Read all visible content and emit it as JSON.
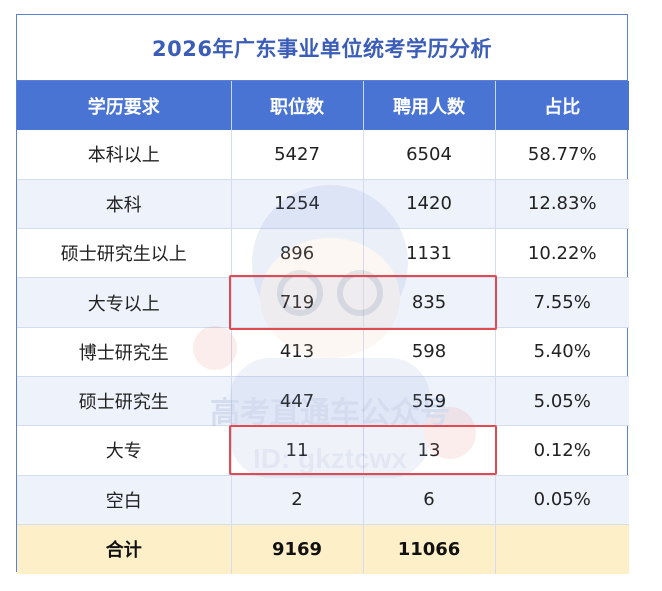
{
  "title": "2026年广东事业单位统考学历分析",
  "columns": [
    "学历要求",
    "职位数",
    "聘用人数",
    "占比"
  ],
  "rows": [
    [
      "本科以上",
      "5427",
      "6504",
      "58.77%"
    ],
    [
      "本科",
      "1254",
      "1420",
      "12.83%"
    ],
    [
      "硕士研究生以上",
      "896",
      "1131",
      "10.22%"
    ],
    [
      "大专以上",
      "719",
      "835",
      "7.55%"
    ],
    [
      "博士研究生",
      "413",
      "598",
      "5.40%"
    ],
    [
      "硕士研究生",
      "447",
      "559",
      "5.05%"
    ],
    [
      "大专",
      "11",
      "13",
      "0.12%"
    ],
    [
      "空白",
      "2",
      "6",
      "0.05%"
    ]
  ],
  "total": [
    "合计",
    "9169",
    "11066",
    ""
  ],
  "watermark": {
    "line1": "高考直通车公众号",
    "line2": "ID: gkztcwx"
  },
  "colors": {
    "header": "#4a74d4",
    "title": "#3b5db8",
    "highlight": "#e34a4f",
    "total_row": "#fdf0c8"
  }
}
